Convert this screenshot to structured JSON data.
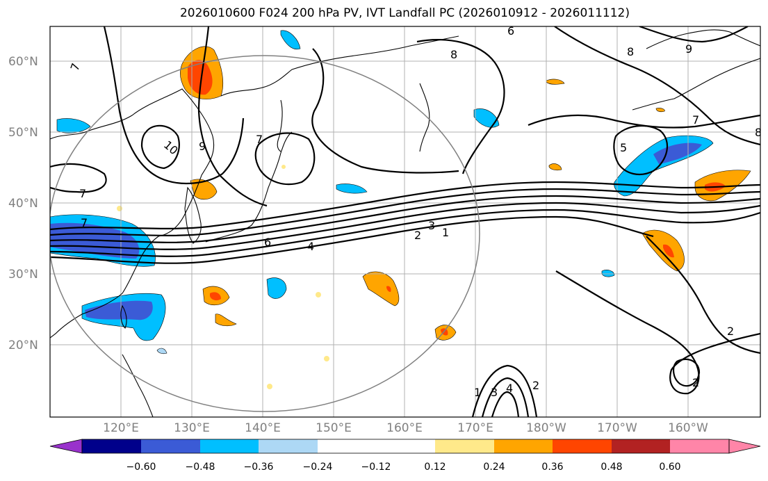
{
  "title": "2026010600 F024 200 hPa PV, IVT Landfall PC (2026010912 - 2026011112)",
  "lat_labels": [
    "60°N",
    "50°N",
    "40°N",
    "30°N",
    "20°N"
  ],
  "lon_labels": [
    "120°E",
    "130°E",
    "140°E",
    "150°E",
    "160°E",
    "170°E",
    "180°W",
    "170°W",
    "160°W"
  ],
  "contour_labels": [
    "7",
    "7",
    "7",
    "10",
    "9",
    "7",
    "6",
    "8",
    "8",
    "9",
    "7",
    "5",
    "8",
    "6",
    "4",
    "2",
    "3",
    "1",
    "1",
    "3",
    "4",
    "2",
    "2",
    "2"
  ],
  "colorbar": {
    "ticks": [
      "−0.60",
      "−0.48",
      "−0.36",
      "−0.24",
      "−0.12",
      "0.12",
      "0.24",
      "0.36",
      "0.48",
      "0.60"
    ],
    "colors": {
      "under": "#9932cc",
      "neg060": "#00008b",
      "neg048": "#3b5bd6",
      "neg036": "#00bfff",
      "neg024": "#add8f5",
      "zero": "#ffffff",
      "pos012": "#ffe98a",
      "pos024": "#ffa500",
      "pos036": "#ff4500",
      "pos048": "#b22222",
      "over": "#ff85a8"
    }
  }
}
